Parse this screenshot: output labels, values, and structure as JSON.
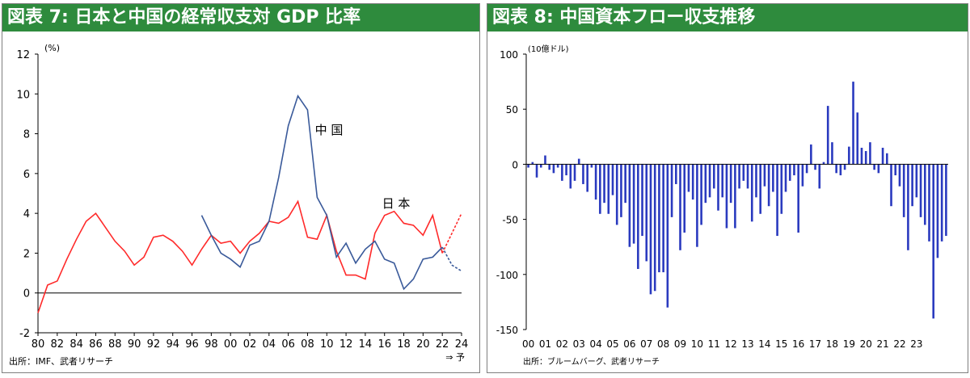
{
  "chart_data": [
    {
      "type": "line",
      "title": "図表 7: 日本と中国の経常収支対 GDP 比率",
      "unit_label": "(%)",
      "ylim": [
        -2,
        12
      ],
      "yticks": [
        -2,
        0,
        2,
        4,
        6,
        8,
        10,
        12
      ],
      "xlim": [
        80,
        24
      ],
      "x_tick_labels": [
        "80",
        "82",
        "84",
        "86",
        "88",
        "90",
        "92",
        "94",
        "96",
        "98",
        "00",
        "02",
        "04",
        "06",
        "08",
        "10",
        "12",
        "14",
        "16",
        "18",
        "20",
        "22",
        "24"
      ],
      "forecast_label": "⇒ 予",
      "source": "出所：IMF、武者リサーチ",
      "colors": {
        "japan": "#ff2a2a",
        "china": "#3a5a9a"
      },
      "series": [
        {
          "name": "日 本",
          "years": [
            1980,
            1981,
            1982,
            1983,
            1984,
            1985,
            1986,
            1987,
            1988,
            1989,
            1990,
            1991,
            1992,
            1993,
            1994,
            1995,
            1996,
            1997,
            1998,
            1999,
            2000,
            2001,
            2002,
            2003,
            2004,
            2005,
            2006,
            2007,
            2008,
            2009,
            2010,
            2011,
            2012,
            2013,
            2014,
            2015,
            2016,
            2017,
            2018,
            2019,
            2020,
            2021,
            2022
          ],
          "values": [
            -1.0,
            0.4,
            0.6,
            1.7,
            2.7,
            3.6,
            4.0,
            3.3,
            2.6,
            2.1,
            1.4,
            1.8,
            2.8,
            2.9,
            2.6,
            2.1,
            1.4,
            2.2,
            2.9,
            2.5,
            2.6,
            2.0,
            2.6,
            3.0,
            3.6,
            3.5,
            3.8,
            4.6,
            2.8,
            2.7,
            3.9,
            2.1,
            0.9,
            0.9,
            0.7,
            3.0,
            3.9,
            4.1,
            3.5,
            3.4,
            2.9,
            3.9,
            2.0
          ],
          "forecast_years": [
            2022,
            2023,
            2024
          ],
          "forecast_values": [
            2.0,
            3.0,
            4.0
          ]
        },
        {
          "name": "中 国",
          "years": [
            1997,
            1998,
            1999,
            2000,
            2001,
            2002,
            2003,
            2004,
            2005,
            2006,
            2007,
            2008,
            2009,
            2010,
            2011,
            2012,
            2013,
            2014,
            2015,
            2016,
            2017,
            2018,
            2019,
            2020,
            2021,
            2022
          ],
          "values": [
            3.9,
            2.9,
            2.0,
            1.7,
            1.3,
            2.4,
            2.6,
            3.6,
            5.8,
            8.4,
            9.9,
            9.2,
            4.8,
            3.9,
            1.8,
            2.5,
            1.5,
            2.2,
            2.6,
            1.7,
            1.5,
            0.2,
            0.7,
            1.7,
            1.8,
            2.3
          ],
          "forecast_years": [
            2022,
            2023,
            2024
          ],
          "forecast_values": [
            2.3,
            1.4,
            1.1
          ]
        }
      ]
    },
    {
      "type": "bar",
      "title": "図表 8: 中国資本フロー収支推移",
      "unit_label": "(10億ドル)",
      "ylim": [
        -150,
        100
      ],
      "yticks": [
        -150,
        -100,
        -50,
        0,
        50,
        100
      ],
      "x_tick_labels": [
        "00",
        "01",
        "02",
        "03",
        "04",
        "05",
        "06",
        "07",
        "08",
        "09",
        "10",
        "11",
        "12",
        "13",
        "14",
        "15",
        "16",
        "17",
        "18",
        "19",
        "20",
        "21",
        "22",
        "23"
      ],
      "bars_per_year": 4,
      "source": "出所：ブルームバーグ、武者リサーチ",
      "colors": {
        "bar": "#2b3bbf"
      },
      "values": [
        -3,
        2,
        -12,
        -3,
        8,
        -5,
        -8,
        -3,
        -15,
        -10,
        -22,
        -15,
        5,
        -18,
        -25,
        -3,
        -32,
        -45,
        -35,
        -45,
        -28,
        -55,
        -48,
        -35,
        -75,
        -72,
        -95,
        -65,
        -88,
        -118,
        -115,
        -98,
        -98,
        -130,
        -48,
        -18,
        -78,
        -62,
        -25,
        -32,
        -75,
        -55,
        -35,
        -30,
        -22,
        -42,
        -30,
        -58,
        -35,
        -58,
        -22,
        -15,
        -22,
        -52,
        -30,
        -45,
        -20,
        -38,
        -25,
        -65,
        -45,
        -25,
        -15,
        -10,
        -62,
        -20,
        -8,
        18,
        -5,
        -22,
        2,
        53,
        20,
        -8,
        -10,
        -5,
        16,
        75,
        47,
        15,
        12,
        20,
        -5,
        -8,
        15,
        10,
        -38,
        -10,
        -20,
        -48,
        -78,
        -38,
        -30,
        -48,
        -55,
        -70,
        -140,
        -85,
        -70,
        -65
      ]
    }
  ]
}
